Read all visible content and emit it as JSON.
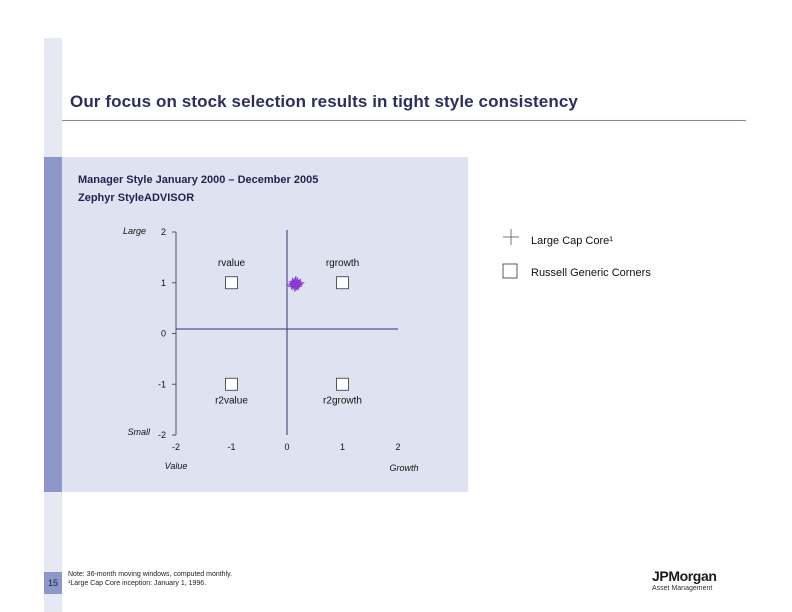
{
  "header": {
    "title": "Our focus on stock selection results in tight style consistency"
  },
  "page_number": "15",
  "note": {
    "line1": "Note: 36-month moving windows, computed monthly.",
    "line2": "¹Large Cap Core inception: January 1, 1996."
  },
  "logo": {
    "main": "JPMorgan",
    "sub": "Asset Management"
  },
  "chart_data": {
    "type": "scatter",
    "title": "Manager Style January 2000 – December 2005",
    "subtitle": "Zephyr StyleADVISOR",
    "xlim": [
      -2,
      2
    ],
    "ylim": [
      -2,
      2
    ],
    "x_ticks": [
      "-2",
      "-1",
      "0",
      "1",
      "2"
    ],
    "y_ticks": [
      "2",
      "1",
      "0",
      "-1",
      "-2"
    ],
    "x_label_left": "Value",
    "x_label_right": "Growth",
    "y_label_top": "Large",
    "y_label_bottom": "Small",
    "legend": [
      {
        "symbol": "plus",
        "label": "Large Cap Core¹"
      },
      {
        "symbol": "square",
        "label": "Russell Generic Corners"
      }
    ],
    "corners": [
      {
        "name": "rvalue",
        "x": -1,
        "y": 1,
        "label_pos": "above"
      },
      {
        "name": "rgrowth",
        "x": 1,
        "y": 1,
        "label_pos": "above"
      },
      {
        "name": "r2value",
        "x": -1,
        "y": -1,
        "label_pos": "below"
      },
      {
        "name": "r2growth",
        "x": 1,
        "y": -1,
        "label_pos": "below"
      }
    ],
    "series": [
      {
        "name": "Large Cap Core¹",
        "color": "#8a3bd1",
        "points": [
          [
            0.15,
            0.97
          ],
          [
            0.18,
            1.0
          ],
          [
            0.12,
            0.95
          ],
          [
            0.2,
            0.93
          ],
          [
            0.1,
            1.02
          ],
          [
            0.16,
            1.05
          ],
          [
            0.22,
            0.98
          ],
          [
            0.08,
            0.96
          ],
          [
            0.14,
            0.9
          ],
          [
            0.19,
            1.03
          ],
          [
            0.11,
            0.99
          ],
          [
            0.17,
            0.94
          ],
          [
            0.13,
            1.01
          ],
          [
            0.21,
            0.96
          ],
          [
            0.09,
            0.93
          ],
          [
            0.15,
            1.04
          ],
          [
            0.12,
            0.98
          ],
          [
            0.18,
            0.95
          ],
          [
            0.24,
            1.0
          ],
          [
            0.16,
            0.92
          ]
        ]
      }
    ]
  }
}
